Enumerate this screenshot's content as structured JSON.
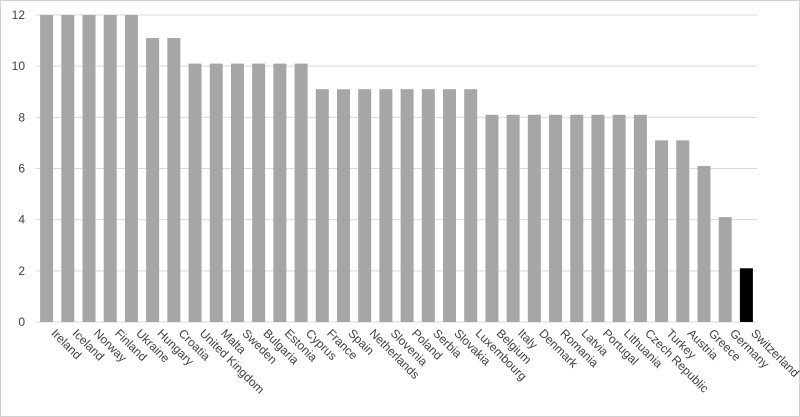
{
  "chart_data": {
    "type": "bar",
    "title": "",
    "xlabel": "",
    "ylabel": "",
    "ylim": [
      0,
      12
    ],
    "yticks": [
      0,
      2,
      4,
      6,
      8,
      10,
      12
    ],
    "grid": true,
    "categories": [
      "Ireland",
      "Iceland",
      "Norway",
      "Finland",
      "Ukraine",
      "Hungary",
      "Croatia",
      "United Kingdom",
      "Malta",
      "Sweden",
      "Bulgaria",
      "Estonia",
      "Cyprus",
      "France",
      "Spain",
      "Netherlands",
      "Slovenia",
      "Poland",
      "Serbia",
      "Slovakia",
      "Luxembourg",
      "Belgium",
      "Italy",
      "Denmark",
      "Romania",
      "Latvia",
      "Portugal",
      "Lithuania",
      "Czech Republic",
      "Turkey",
      "Austria",
      "Greece",
      "Germany",
      "Switzerland"
    ],
    "values": [
      12,
      12,
      12,
      12,
      12,
      11.1,
      11.1,
      10.1,
      10.1,
      10.1,
      10.1,
      10.1,
      10.1,
      9.1,
      9.1,
      9.1,
      9.1,
      9.1,
      9.1,
      9.1,
      9.1,
      8.1,
      8.1,
      8.1,
      8.1,
      8.1,
      8.1,
      8.1,
      8.1,
      7.1,
      7.1,
      6.1,
      4.1,
      2.1
    ],
    "colors": {
      "default": "#a6a6a6",
      "highlight": "#000000",
      "highlight_category": "Switzerland",
      "grid": "#d9d9d9"
    }
  }
}
